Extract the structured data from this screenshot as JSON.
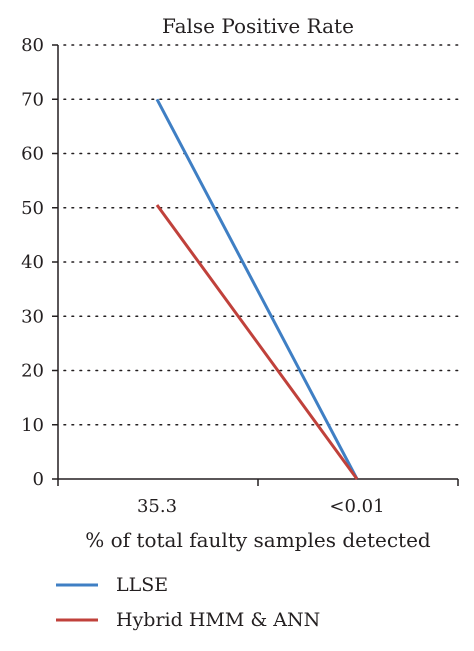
{
  "chart_data": {
    "type": "line",
    "title": "False Positive Rate",
    "xlabel": "% of total faulty samples detected",
    "ylabel": "",
    "categories": [
      "35.3",
      "<0.01"
    ],
    "ylim": [
      0,
      80
    ],
    "yticks": [
      0,
      10,
      20,
      30,
      40,
      50,
      60,
      70,
      80
    ],
    "grid": true,
    "legend_position": "bottom-left",
    "series": [
      {
        "name": "LLSE",
        "values": [
          70,
          0
        ],
        "color": "#3f7fc4"
      },
      {
        "name": "Hybrid HMM & ANN",
        "values": [
          50.5,
          0
        ],
        "color": "#c0413b"
      }
    ]
  }
}
